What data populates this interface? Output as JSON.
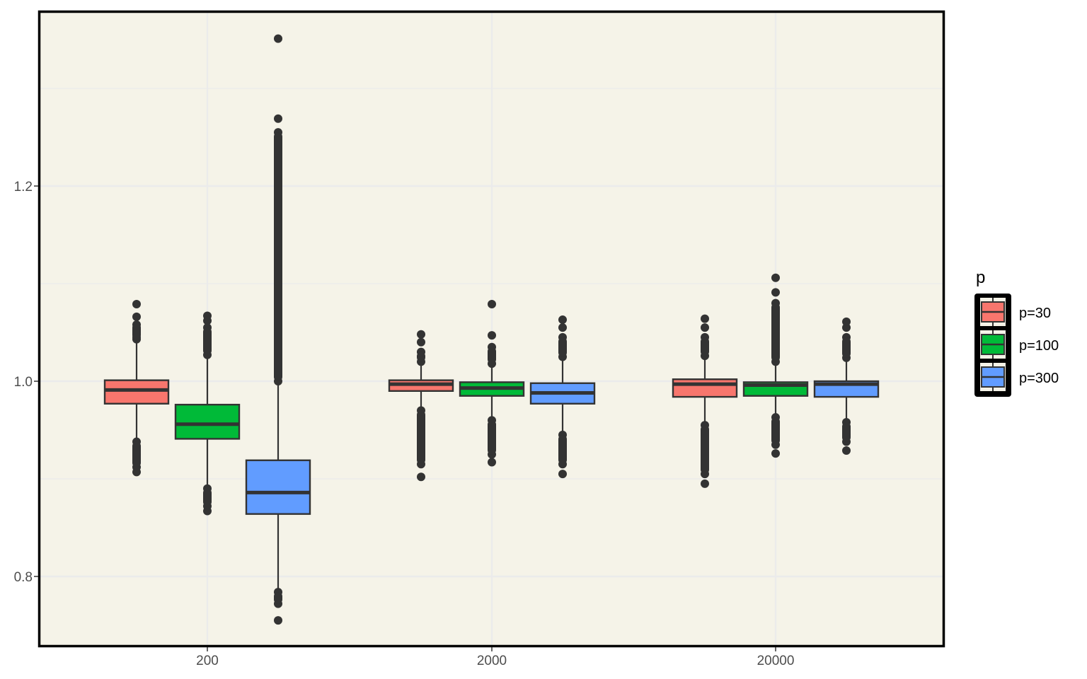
{
  "chart_data": {
    "type": "boxplot",
    "title": "",
    "xlabel": "",
    "ylabel": "",
    "categories": [
      "200",
      "2000",
      "20000"
    ],
    "ylim": [
      0.728,
      1.38
    ],
    "yticks": [
      0.8,
      1.0,
      1.2
    ],
    "ytick_labels": [
      "0.8",
      "1.0",
      "1.2"
    ],
    "grid": true,
    "panel_background": "#f5f3e8",
    "legend": {
      "title": "p",
      "position": "right",
      "entries": [
        "p=30",
        "p=100",
        "p=300"
      ]
    },
    "series": [
      {
        "name": "p=30",
        "color": "#f8766d",
        "boxes": [
          {
            "category": "200",
            "min": 0.941,
            "q1": 0.977,
            "median": 0.991,
            "q3": 1.001,
            "max": 1.042,
            "outliers_high": [
              1.043,
              1.045,
              1.05,
              1.055,
              1.058,
              1.066,
              1.079
            ],
            "outliers_low": [
              0.907,
              0.912,
              0.918,
              0.925,
              0.932,
              0.938
            ]
          },
          {
            "category": "2000",
            "min": 0.972,
            "q1": 0.99,
            "median": 0.997,
            "q3": 1.001,
            "max": 1.018,
            "outliers_high": [
              1.02,
              1.03,
              1.04,
              1.048
            ],
            "outliers_low": [
              0.902,
              0.915,
              0.93,
              0.945,
              0.96,
              0.97
            ]
          },
          {
            "category": "20000",
            "min": 0.957,
            "q1": 0.984,
            "median": 0.997,
            "q3": 1.002,
            "max": 1.024,
            "outliers_high": [
              1.026,
              1.035,
              1.045,
              1.055,
              1.064
            ],
            "outliers_low": [
              0.895,
              0.905,
              0.915,
              0.93,
              0.945,
              0.955
            ]
          }
        ]
      },
      {
        "name": "p=100",
        "color": "#00ba38",
        "boxes": [
          {
            "category": "200",
            "min": 0.892,
            "q1": 0.941,
            "median": 0.956,
            "q3": 0.976,
            "max": 1.025,
            "outliers_high": [
              1.027,
              1.035,
              1.045,
              1.055,
              1.062,
              1.067
            ],
            "outliers_low": [
              0.867,
              0.872,
              0.878,
              0.884,
              0.89
            ]
          },
          {
            "category": "2000",
            "min": 0.962,
            "q1": 0.985,
            "median": 0.993,
            "q3": 0.999,
            "max": 1.016,
            "outliers_high": [
              1.018,
              1.025,
              1.035,
              1.047,
              1.079
            ],
            "outliers_low": [
              0.917,
              0.925,
              0.935,
              0.945,
              0.955,
              0.96
            ]
          },
          {
            "category": "20000",
            "min": 0.965,
            "q1": 0.985,
            "median": 0.996,
            "q3": 0.999,
            "max": 1.018,
            "outliers_high": [
              1.02,
              1.04,
              1.06,
              1.08,
              1.091,
              1.106
            ],
            "outliers_low": [
              0.926,
              0.935,
              0.945,
              0.955,
              0.963
            ]
          }
        ]
      },
      {
        "name": "p=300",
        "color": "#619cff",
        "boxes": [
          {
            "category": "200",
            "min": 0.786,
            "q1": 0.864,
            "median": 0.886,
            "q3": 0.919,
            "max": 0.996,
            "outliers_high": [
              1.0,
              1.05,
              1.1,
              1.15,
              1.2,
              1.21,
              1.23,
              1.245,
              1.255,
              1.269,
              1.351
            ],
            "outliers_low": [
              0.772,
              0.778,
              0.784,
              0.755
            ]
          },
          {
            "category": "2000",
            "min": 0.947,
            "q1": 0.977,
            "median": 0.988,
            "q3": 0.998,
            "max": 1.022,
            "outliers_high": [
              1.025,
              1.035,
              1.045,
              1.055,
              1.063
            ],
            "outliers_low": [
              0.905,
              0.915,
              0.925,
              0.935,
              0.945
            ]
          },
          {
            "category": "20000",
            "min": 0.961,
            "q1": 0.984,
            "median": 0.997,
            "q3": 1.0,
            "max": 1.022,
            "outliers_high": [
              1.024,
              1.035,
              1.045,
              1.055,
              1.061
            ],
            "outliers_low": [
              0.929,
              0.938,
              0.948,
              0.958
            ]
          }
        ]
      }
    ]
  }
}
